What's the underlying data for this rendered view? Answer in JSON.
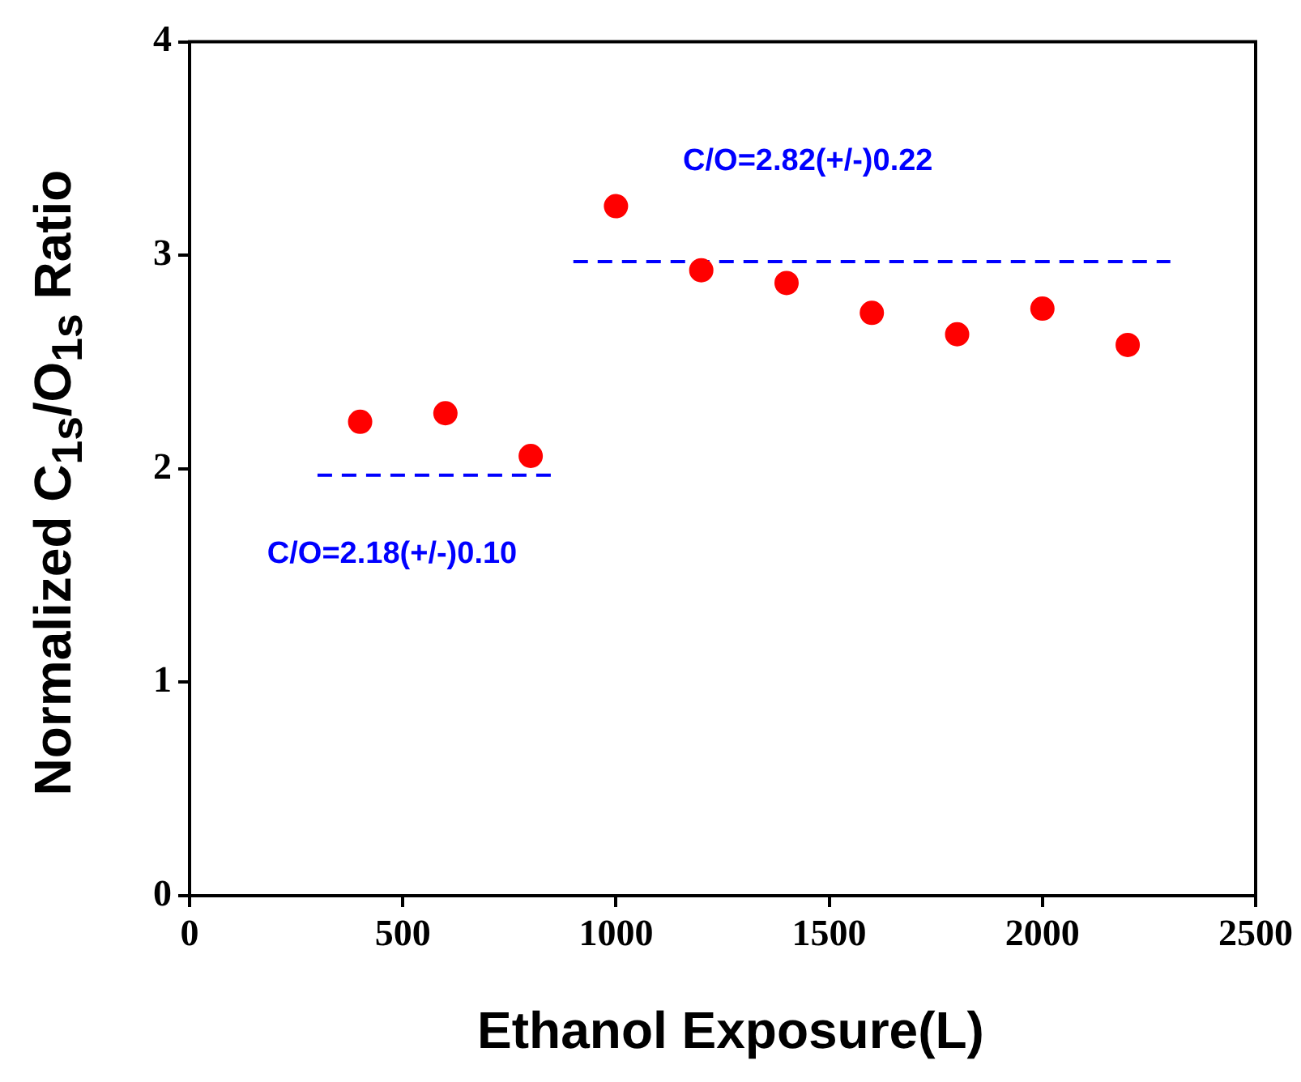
{
  "chart_data": {
    "type": "scatter",
    "xlabel": "Ethanol Exposure(L)",
    "ylabel": "Normalized C$_{1s}$/O$_{1s}$ Ratio",
    "series": [
      {
        "color": "#ff0000",
        "marker": "circle",
        "x": [
          400,
          600,
          800,
          1000,
          1200,
          1400,
          1600,
          1800,
          2000,
          2200
        ],
        "values": [
          2.22,
          2.26,
          2.06,
          3.23,
          2.93,
          2.87,
          2.73,
          2.63,
          2.75,
          2.58
        ]
      },
      {
        "type": "line",
        "color": "#0000ff",
        "line_style": "dashed",
        "marker": "none",
        "x": [
          300,
          850
        ],
        "values": [
          1.97,
          1.97
        ]
      },
      {
        "type": "line",
        "color": "#0000ff",
        "line_style": "dashed",
        "marker": "none",
        "x": [
          900,
          2300
        ],
        "values": [
          2.97,
          2.97
        ]
      }
    ],
    "annotations": [
      "C/O=2.18(+/-)0.10",
      "C/O=2.82(+/-)0.22"
    ],
    "xlim": [
      0,
      2500
    ],
    "xticks": [
      0,
      500,
      1000,
      1500,
      2000,
      2500
    ],
    "ylim": [
      0,
      4
    ],
    "yticks": [
      0,
      1,
      2,
      3,
      4
    ],
    "grid": false,
    "legend": false
  }
}
